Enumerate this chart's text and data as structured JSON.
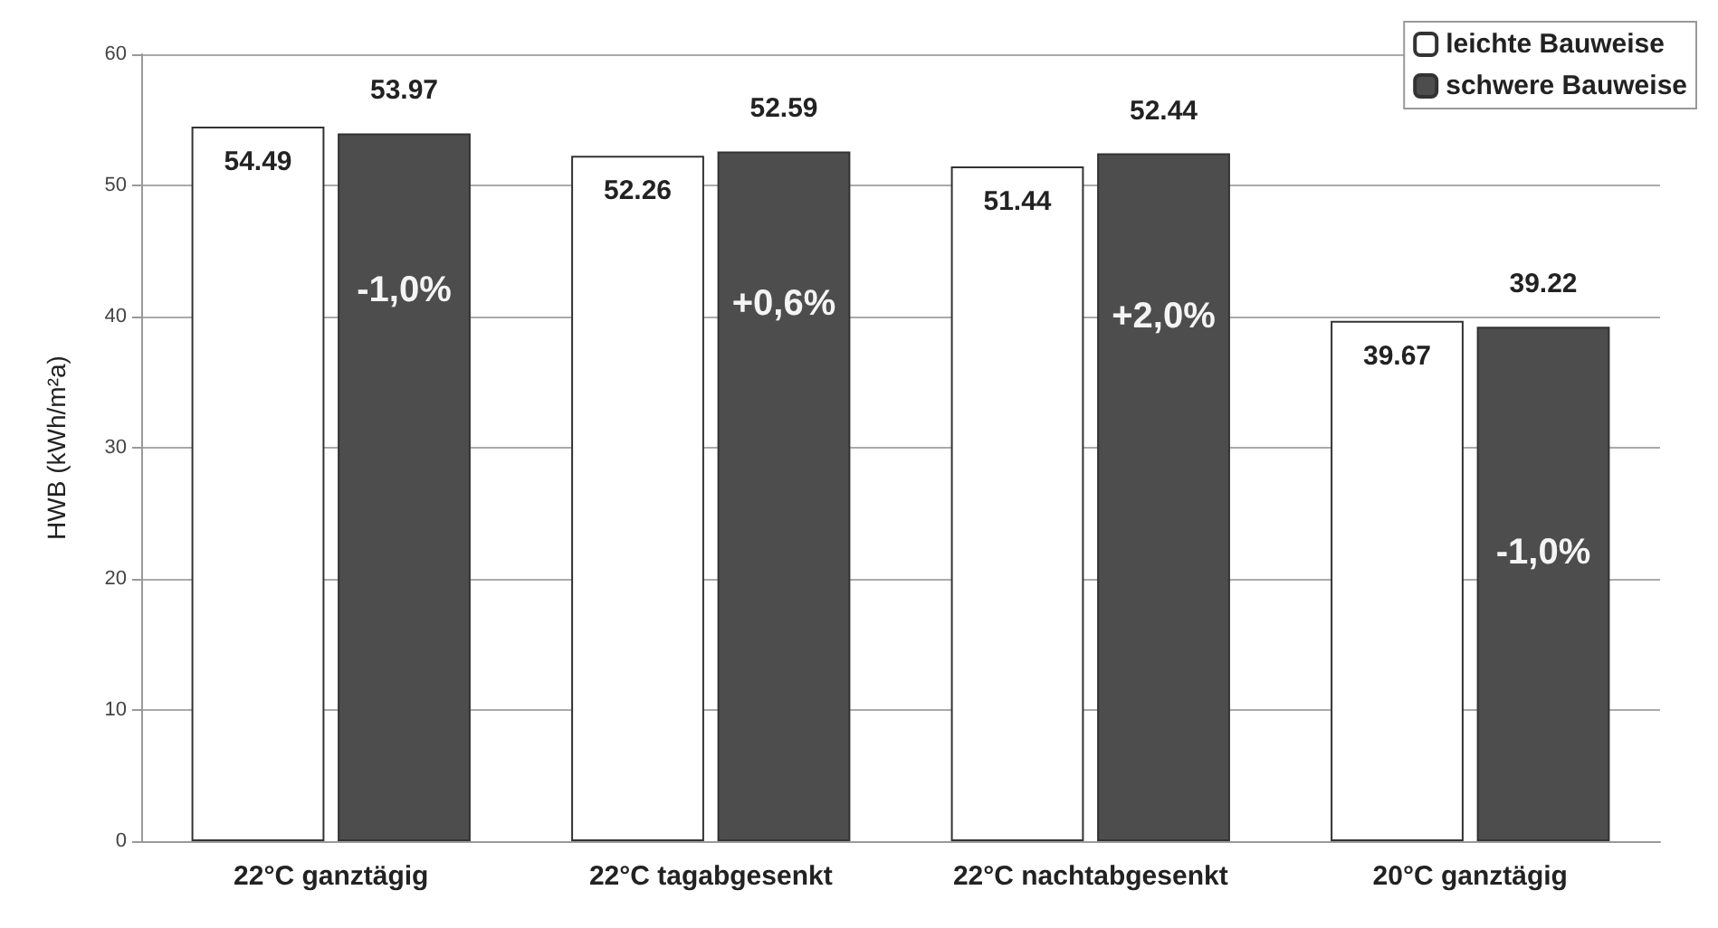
{
  "chart_data": {
    "type": "bar",
    "ylabel": "HWB (kWh/m²a)",
    "categories": [
      "22°C ganztägig",
      "22°C tagabgesenkt",
      "22°C nachtabgesenkt",
      "20°C ganztägig"
    ],
    "series": [
      {
        "name": "leichte Bauweise",
        "color": "#ffffff",
        "values": [
          54.49,
          52.26,
          51.44,
          39.67
        ]
      },
      {
        "name": "schwere Bauweise",
        "color": "#4d4d4d",
        "values": [
          53.97,
          52.59,
          52.44,
          39.22
        ]
      }
    ],
    "ylim": [
      0,
      60
    ],
    "yticks": [
      0,
      10,
      20,
      30,
      40,
      50,
      60
    ],
    "grid": "y",
    "legend": "top right",
    "data_labels": true,
    "annotations": [
      {
        "text": "-1,0%",
        "x": "22°C ganztägig",
        "y": 42
      },
      {
        "text": "+0,6%",
        "x": "22°C tagabgesenkt",
        "y": 41
      },
      {
        "text": "+2,0%",
        "x": "22°C nachtabgesenkt",
        "y": 40
      },
      {
        "text": "-1,0%",
        "x": "20°C ganztägig",
        "y": 22
      }
    ]
  }
}
